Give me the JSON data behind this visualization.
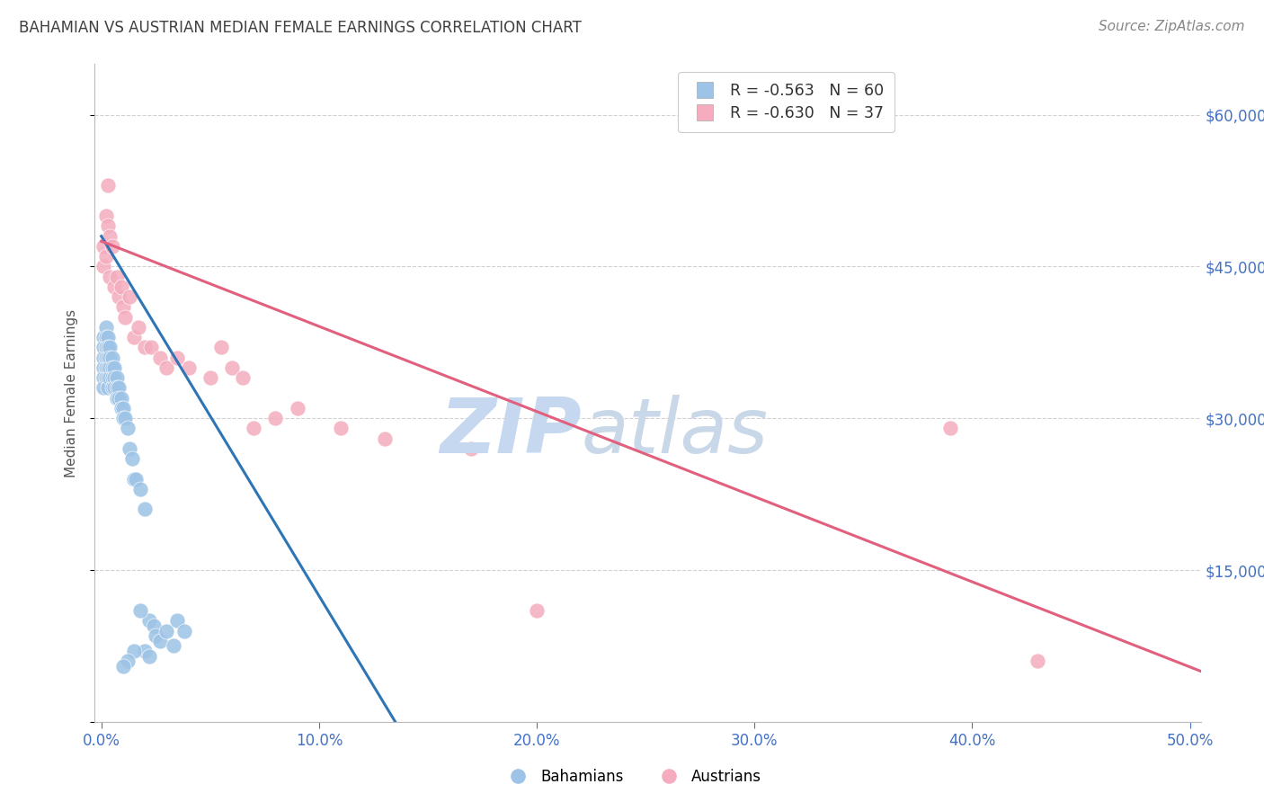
{
  "title": "BAHAMIAN VS AUSTRIAN MEDIAN FEMALE EARNINGS CORRELATION CHART",
  "source": "Source: ZipAtlas.com",
  "xlabel_ticks": [
    "0.0%",
    "10.0%",
    "20.0%",
    "30.0%",
    "40.0%",
    "50.0%"
  ],
  "ylabel": "Median Female Earnings",
  "xlim": [
    -0.003,
    0.505
  ],
  "ylim": [
    0,
    65000
  ],
  "y_tick_vals": [
    0,
    15000,
    30000,
    45000,
    60000
  ],
  "y_right_labels": [
    "",
    "$15,000",
    "$30,000",
    "$45,000",
    "$60,000"
  ],
  "bahamian_color": "#9DC3E6",
  "austrian_color": "#F4ACBE",
  "bahamian_line_color": "#2E75B6",
  "austrian_line_color": "#E0607E",
  "legend_r1": "R = -0.563",
  "legend_n1": "N = 60",
  "legend_r2": "R = -0.630",
  "legend_n2": "N = 37",
  "label1": "Bahamians",
  "label2": "Austrians",
  "bahamians_x": [
    0.001,
    0.001,
    0.001,
    0.001,
    0.001,
    0.001,
    0.002,
    0.002,
    0.002,
    0.002,
    0.002,
    0.002,
    0.003,
    0.003,
    0.003,
    0.003,
    0.003,
    0.003,
    0.004,
    0.004,
    0.004,
    0.004,
    0.005,
    0.005,
    0.005,
    0.005,
    0.006,
    0.006,
    0.006,
    0.007,
    0.007,
    0.007,
    0.008,
    0.008,
    0.009,
    0.009,
    0.01,
    0.01,
    0.011,
    0.012,
    0.013,
    0.014,
    0.015,
    0.016,
    0.018,
    0.02,
    0.022,
    0.024,
    0.025,
    0.027,
    0.03,
    0.033,
    0.035,
    0.038,
    0.02,
    0.022,
    0.018,
    0.015,
    0.012,
    0.01
  ],
  "bahamians_y": [
    38000,
    37000,
    36000,
    35000,
    34000,
    33000,
    39000,
    38000,
    37000,
    36000,
    35000,
    34000,
    38000,
    37000,
    36000,
    35000,
    34000,
    33000,
    37000,
    36000,
    35000,
    34000,
    36000,
    35000,
    34000,
    33000,
    35000,
    34000,
    33000,
    34000,
    33000,
    32000,
    33000,
    32000,
    32000,
    31000,
    31000,
    30000,
    30000,
    29000,
    27000,
    26000,
    24000,
    24000,
    23000,
    21000,
    10000,
    9500,
    8500,
    8000,
    9000,
    7500,
    10000,
    9000,
    7000,
    6500,
    11000,
    7000,
    6000,
    5500
  ],
  "austrians_x": [
    0.001,
    0.001,
    0.002,
    0.002,
    0.003,
    0.003,
    0.004,
    0.004,
    0.005,
    0.006,
    0.007,
    0.008,
    0.009,
    0.01,
    0.011,
    0.013,
    0.015,
    0.017,
    0.02,
    0.023,
    0.027,
    0.03,
    0.035,
    0.04,
    0.05,
    0.055,
    0.06,
    0.065,
    0.07,
    0.08,
    0.09,
    0.11,
    0.13,
    0.17,
    0.2,
    0.39,
    0.43
  ],
  "austrians_y": [
    47000,
    45000,
    50000,
    46000,
    53000,
    49000,
    48000,
    44000,
    47000,
    43000,
    44000,
    42000,
    43000,
    41000,
    40000,
    42000,
    38000,
    39000,
    37000,
    37000,
    36000,
    35000,
    36000,
    35000,
    34000,
    37000,
    35000,
    34000,
    29000,
    30000,
    31000,
    29000,
    28000,
    27000,
    11000,
    29000,
    6000
  ],
  "blue_line_x": [
    0.0,
    0.135
  ],
  "blue_line_y": [
    48000,
    0
  ],
  "pink_line_x": [
    0.0,
    0.505
  ],
  "pink_line_y": [
    47500,
    5000
  ],
  "background_color": "#ffffff",
  "grid_color": "#cccccc",
  "axis_color": "#4472c4",
  "title_color": "#404040",
  "source_color": "#888888",
  "watermark_ZIP_color": "#C5D8EF",
  "watermark_atlas_color": "#C8D8E8"
}
